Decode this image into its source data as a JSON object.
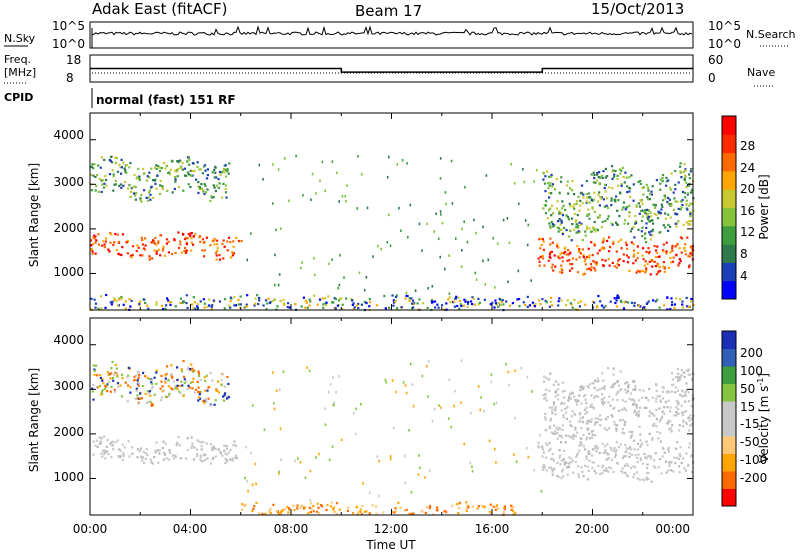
{
  "header": {
    "station": "Adak East (fitACF)",
    "beam": "Beam 17",
    "date": "15/Oct/2013"
  },
  "strips": {
    "nsky_label": "N.Sky",
    "nsky_ticks": [
      "10^5",
      "10^0"
    ],
    "nsearch_label": "N.Search",
    "nsearch_ticks": [
      "10^5",
      "10^0"
    ],
    "freq_label": "Freq.",
    "freq_unit": "[MHz]",
    "freq_ticks": [
      "18",
      "8"
    ],
    "nave_label": "Nave",
    "nave_ticks": [
      "60",
      "0"
    ],
    "cpid_label": "CPID",
    "cpid_text": "normal (fast) 151 RF",
    "freq_profile": [
      [
        0,
        12.5
      ],
      [
        10,
        12.5
      ],
      [
        10,
        10.5
      ],
      [
        18,
        10.5
      ],
      [
        18,
        12.5
      ],
      [
        24,
        12.5
      ]
    ]
  },
  "chart_data": [
    {
      "type": "heatmap",
      "name": "power-panel",
      "ylabel": "Slant Range [km]",
      "xlabel": "Time UT",
      "xlim": [
        0,
        24
      ],
      "ylim": [
        180,
        4600
      ],
      "yticks": [
        "4000",
        "3000",
        "2000",
        "1000"
      ],
      "xticks": [
        "00:00",
        "04:00",
        "08:00",
        "12:00",
        "16:00",
        "20:00",
        "00:00"
      ],
      "colorbar": {
        "label": "Power [dB]",
        "ticks": [
          "28",
          "24",
          "20",
          "16",
          "12",
          "8",
          "4"
        ],
        "colors": [
          "#0000ff",
          "#1b3fb6",
          "#2f7a4a",
          "#3e9e3e",
          "#84c33a",
          "#c8c832",
          "#ffa500",
          "#ff6a00",
          "#ff2a00",
          "#ff0000"
        ]
      },
      "regions": [
        {
          "t0": 0.0,
          "t1": 6.0,
          "r_center": 1650,
          "r_width": 500,
          "value": "high"
        },
        {
          "t0": 0.0,
          "t1": 5.5,
          "r_center": 3150,
          "r_width": 800,
          "value": "mid"
        },
        {
          "t0": 17.8,
          "t1": 24.0,
          "r_center": 1400,
          "r_width": 700,
          "value": "high"
        },
        {
          "t0": 18.0,
          "t1": 24.0,
          "r_center": 2600,
          "r_width": 1400,
          "value": "mid"
        },
        {
          "t0": 0.0,
          "t1": 24.0,
          "r_center": 350,
          "r_width": 300,
          "value": "low"
        }
      ]
    },
    {
      "type": "heatmap",
      "name": "velocity-panel",
      "ylabel": "Slant Range [km]",
      "xlabel": "Time UT",
      "xlim": [
        0,
        24
      ],
      "ylim": [
        180,
        4600
      ],
      "yticks": [
        "4000",
        "3000",
        "2000",
        "1000"
      ],
      "xticks": [
        "00:00",
        "04:00",
        "08:00",
        "12:00",
        "16:00",
        "20:00",
        "00:00"
      ],
      "colorbar": {
        "label": "Velocity [m s",
        "label_sup": "-1",
        "label_end": "]",
        "ticks": [
          "200",
          "100",
          "50",
          "15",
          "-15",
          "-50",
          "-100",
          "-200"
        ],
        "colors": [
          "#ff0000",
          "#ff6a00",
          "#ffa500",
          "#ffc878",
          "#c8c8c8",
          "#c8c8c8",
          "#86c540",
          "#3e9e3e",
          "#2f5fb6",
          "#1b2fb6"
        ]
      },
      "regions": [
        {
          "t0": 0.0,
          "t1": 6.0,
          "r_center": 1650,
          "r_width": 500,
          "value": "ground"
        },
        {
          "t0": 0.0,
          "t1": 5.5,
          "r_center": 3150,
          "r_width": 800,
          "value": "mixed"
        },
        {
          "t0": 17.8,
          "t1": 24.0,
          "r_center": 1400,
          "r_width": 700,
          "value": "ground"
        },
        {
          "t0": 18.0,
          "t1": 24.0,
          "r_center": 2600,
          "r_width": 1400,
          "value": "ground"
        },
        {
          "t0": 6.0,
          "t1": 17.0,
          "r_center": 330,
          "r_width": 250,
          "value": "neg"
        }
      ]
    }
  ]
}
